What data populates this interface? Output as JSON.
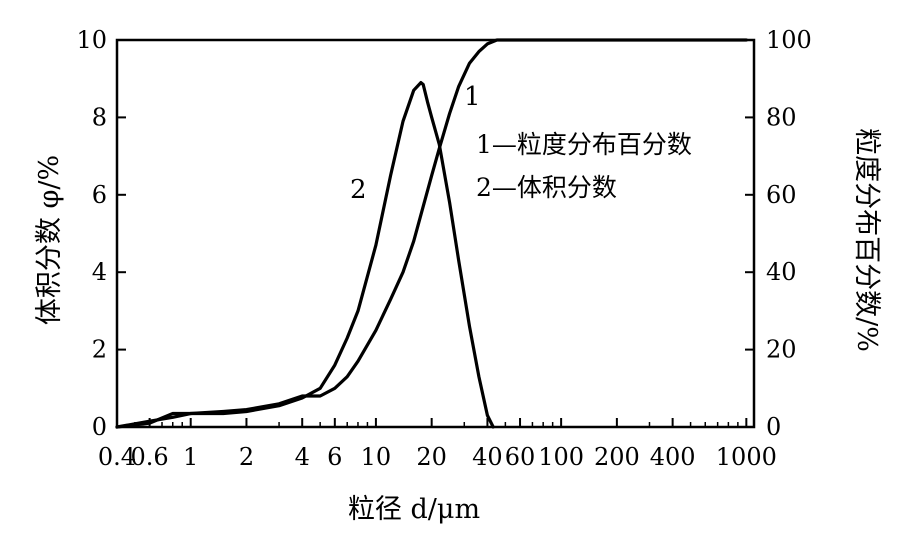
{
  "chart_data": {
    "type": "line",
    "title": "",
    "xlabel": "粒径 d/μm",
    "ylabel_left": "体积分数 φ/%",
    "ylabel_right": "粒度分布百分数/%",
    "x_scale": "log",
    "xlim": [
      0.4,
      1100
    ],
    "ylim_left": [
      0,
      10
    ],
    "ylim_right": [
      0,
      100
    ],
    "x_ticks": [
      0.4,
      0.6,
      1,
      2,
      4,
      6,
      10,
      20,
      40,
      60,
      100,
      200,
      400,
      1000
    ],
    "x_tick_labels": [
      "0.4",
      "0.6",
      "1",
      "2",
      "4",
      "6",
      "10",
      "20",
      "40",
      "60",
      "100",
      "200",
      "400",
      "1000"
    ],
    "y_left_ticks": [
      0,
      2,
      4,
      6,
      8,
      10
    ],
    "y_left_tick_labels": [
      "0",
      "2",
      "4",
      "6",
      "8",
      "10"
    ],
    "y_right_ticks": [
      0,
      20,
      40,
      60,
      80,
      100
    ],
    "y_right_tick_labels": [
      "0",
      "20",
      "40",
      "60",
      "80",
      "100"
    ],
    "grid": false,
    "legend": {
      "placement": "right-center",
      "entries": [
        "1—粒度分布百分数",
        "2—体积分数"
      ]
    },
    "series": [
      {
        "name": "1",
        "axis": "right",
        "x": [
          0.4,
          0.6,
          0.8,
          1,
          1.5,
          2,
          3,
          4,
          5,
          6,
          7,
          8,
          10,
          12,
          14,
          16,
          18,
          20,
          22,
          25,
          28,
          32,
          36,
          40,
          45,
          50,
          60,
          100,
          200,
          500,
          1000
        ],
        "y": [
          0,
          1.5,
          2.5,
          3.5,
          4,
          4.5,
          6,
          8,
          8,
          10,
          13,
          17,
          25,
          33,
          40,
          48,
          57,
          65,
          72,
          81,
          88,
          94,
          97,
          99,
          100,
          100,
          100,
          100,
          100,
          100,
          100
        ]
      },
      {
        "name": "2",
        "axis": "left",
        "x": [
          0.4,
          0.6,
          0.8,
          1,
          1.5,
          2,
          3,
          4,
          5,
          6,
          7,
          8,
          10,
          12,
          14,
          16,
          17.5,
          18,
          19,
          20,
          22,
          25,
          28,
          32,
          36,
          40,
          43
        ],
        "y": [
          0,
          0.1,
          0.35,
          0.35,
          0.35,
          0.4,
          0.55,
          0.75,
          1.0,
          1.6,
          2.3,
          3.0,
          4.7,
          6.5,
          7.9,
          8.7,
          8.9,
          8.85,
          8.4,
          8.0,
          7.3,
          5.8,
          4.3,
          2.6,
          1.3,
          0.3,
          0
        ]
      }
    ],
    "curve_labels": [
      {
        "text": "1",
        "series": "1"
      },
      {
        "text": "2",
        "series": "2"
      }
    ]
  }
}
